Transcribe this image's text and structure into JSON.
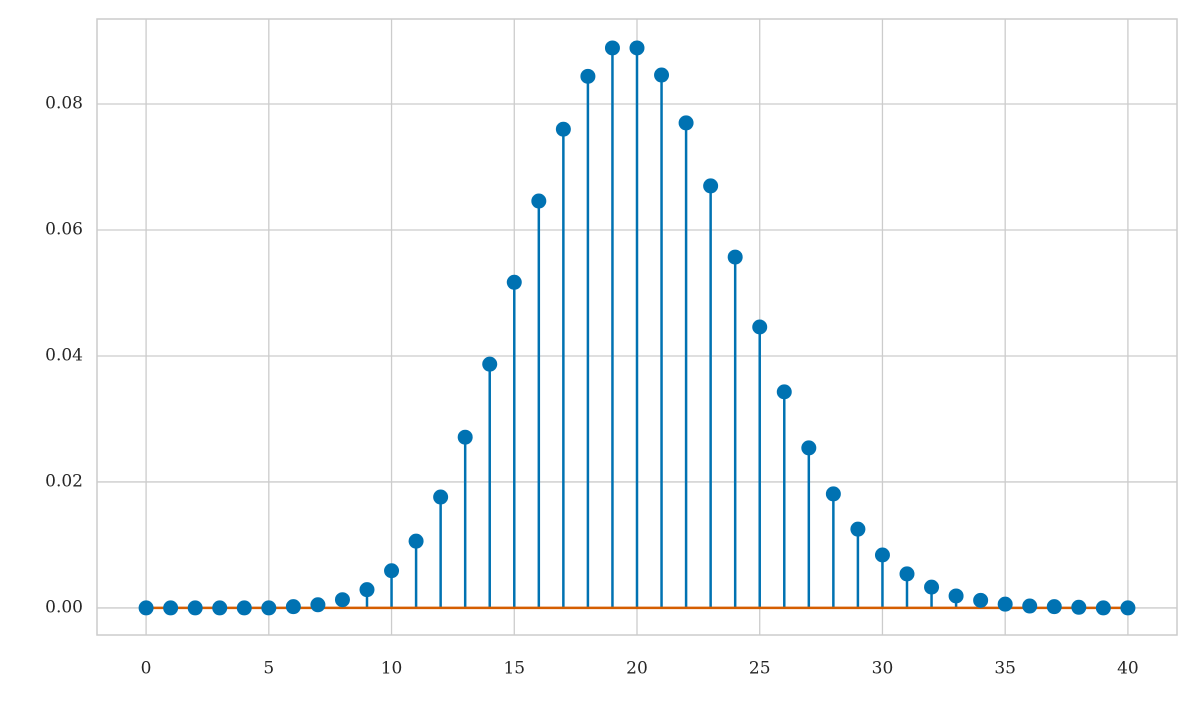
{
  "chart_data": {
    "type": "stem",
    "x": [
      0,
      1,
      2,
      3,
      4,
      5,
      6,
      7,
      8,
      9,
      10,
      11,
      12,
      13,
      14,
      15,
      16,
      17,
      18,
      19,
      20,
      21,
      22,
      23,
      24,
      25,
      26,
      27,
      28,
      29,
      30,
      31,
      32,
      33,
      34,
      35,
      36,
      37,
      38,
      39,
      40
    ],
    "values": [
      0,
      0,
      0,
      0,
      0,
      0,
      0.0002,
      0.0005,
      0.0013,
      0.0029,
      0.0059,
      0.0106,
      0.0176,
      0.0271,
      0.0387,
      0.0517,
      0.0646,
      0.076,
      0.0844,
      0.0889,
      0.0889,
      0.0846,
      0.077,
      0.067,
      0.0557,
      0.0446,
      0.0343,
      0.0254,
      0.0181,
      0.0125,
      0.0084,
      0.0054,
      0.0033,
      0.0019,
      0.0012,
      0.0006,
      0.0003,
      0.0002,
      0.0001,
      0,
      0
    ],
    "color": "#0072b2",
    "baseline_color": "#d55e00",
    "xlim": [
      -2,
      42
    ],
    "ylim": [
      -0.0043,
      0.0935
    ],
    "xticks": [
      0,
      5,
      10,
      15,
      20,
      25,
      30,
      35,
      40
    ],
    "yticks": [
      {
        "value": 0,
        "label": "0.00"
      },
      {
        "value": 0.02,
        "label": "0.02"
      },
      {
        "value": 0.04,
        "label": "0.04"
      },
      {
        "value": 0.06,
        "label": "0.06"
      },
      {
        "value": 0.08,
        "label": "0.08"
      }
    ],
    "grid": true
  }
}
